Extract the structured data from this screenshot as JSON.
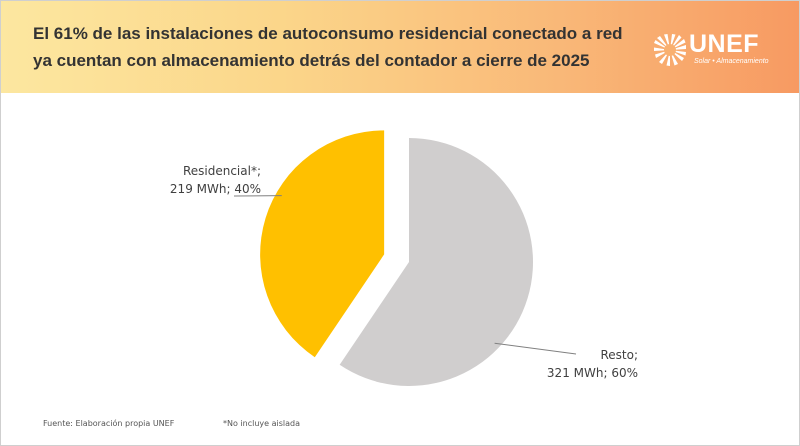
{
  "header": {
    "title_line1": "El 61% de las instalaciones de autoconsumo residencial conectado a red",
    "title_line2": "ya cuentan con almacenamiento detrás del contador a cierre de 2025",
    "logo_text": "UNEF",
    "logo_tagline": "Solar • Almacenamiento",
    "gradient_colors": [
      "#fce7a0",
      "#f79a62"
    ]
  },
  "chart_data": {
    "type": "pie",
    "title": "",
    "slices": [
      {
        "category": "Residencial*",
        "value": 219,
        "unit": "MWh",
        "percent": 40,
        "color": "#ffc000",
        "exploded": true,
        "label_line1": "Residencial*;",
        "label_line2": "219 MWh; 40%"
      },
      {
        "category": "Resto",
        "value": 321,
        "unit": "MWh",
        "percent": 60,
        "color": "#d0cece",
        "exploded": false,
        "label_line1": "Resto;",
        "label_line2": "321 MWh; 60%"
      }
    ],
    "legend": "none",
    "leader_line_color": "#808080"
  },
  "footer": {
    "source": "Fuente: Elaboración propia UNEF",
    "note": "*No incluye aislada"
  }
}
